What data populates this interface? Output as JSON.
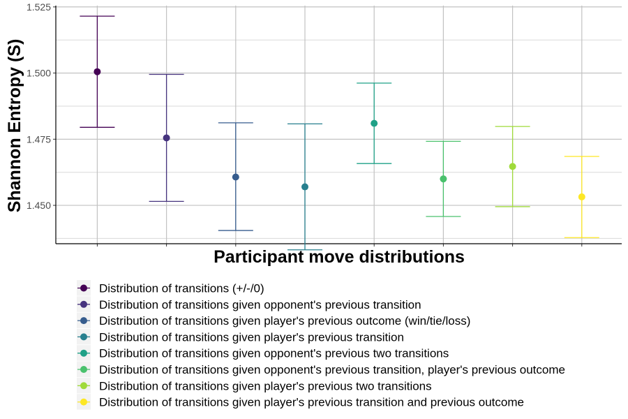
{
  "chart_data": {
    "type": "scatter",
    "xlabel": "Participant move distributions",
    "ylabel": "Shannon Entropy (S)",
    "ylim": [
      1.4355,
      1.5255
    ],
    "y_ticks": [
      1.45,
      1.475,
      1.5,
      1.525
    ],
    "y_tick_labels": [
      "1.450",
      "1.475",
      "1.500",
      "1.525"
    ],
    "y_minor_ticks": [
      1.4375,
      1.4625,
      1.4875,
      1.5125
    ],
    "grid": true,
    "legend_position": "bottom",
    "series": [
      {
        "name": "Distribution of transitions (+/-/0)",
        "color": "#440154",
        "x": 1,
        "y": 1.5005,
        "ymin": 1.4795,
        "ymax": 1.5215
      },
      {
        "name": "Distribution of transitions given opponent's previous transition",
        "color": "#46337E",
        "x": 2,
        "y": 1.4755,
        "ymin": 1.4515,
        "ymax": 1.4995
      },
      {
        "name": "Distribution of transitions given player's previous outcome (win/tie/loss)",
        "color": "#365C8D",
        "x": 3,
        "y": 1.4607,
        "ymin": 1.4405,
        "ymax": 1.4812
      },
      {
        "name": "Distribution of transitions given player's previous transition",
        "color": "#277F8E",
        "x": 4,
        "y": 1.457,
        "ymin": 1.4332,
        "ymax": 1.4808
      },
      {
        "name": "Distribution of transitions given opponent's previous two transitions",
        "color": "#1FA187",
        "x": 5,
        "y": 1.481,
        "ymin": 1.4658,
        "ymax": 1.4962
      },
      {
        "name": "Distribution of transitions given opponent's previous transition, player's previous outcome",
        "color": "#4AC16D",
        "x": 6,
        "y": 1.46,
        "ymin": 1.4458,
        "ymax": 1.4742
      },
      {
        "name": "Distribution of transitions given player's previous two transitions",
        "color": "#9FDA3A",
        "x": 7,
        "y": 1.4647,
        "ymin": 1.4495,
        "ymax": 1.4798
      },
      {
        "name": "Distribution of transitions given player's previous transition and previous outcome",
        "color": "#FDE725",
        "x": 8,
        "y": 1.4532,
        "ymin": 1.4378,
        "ymax": 1.4685
      }
    ]
  }
}
